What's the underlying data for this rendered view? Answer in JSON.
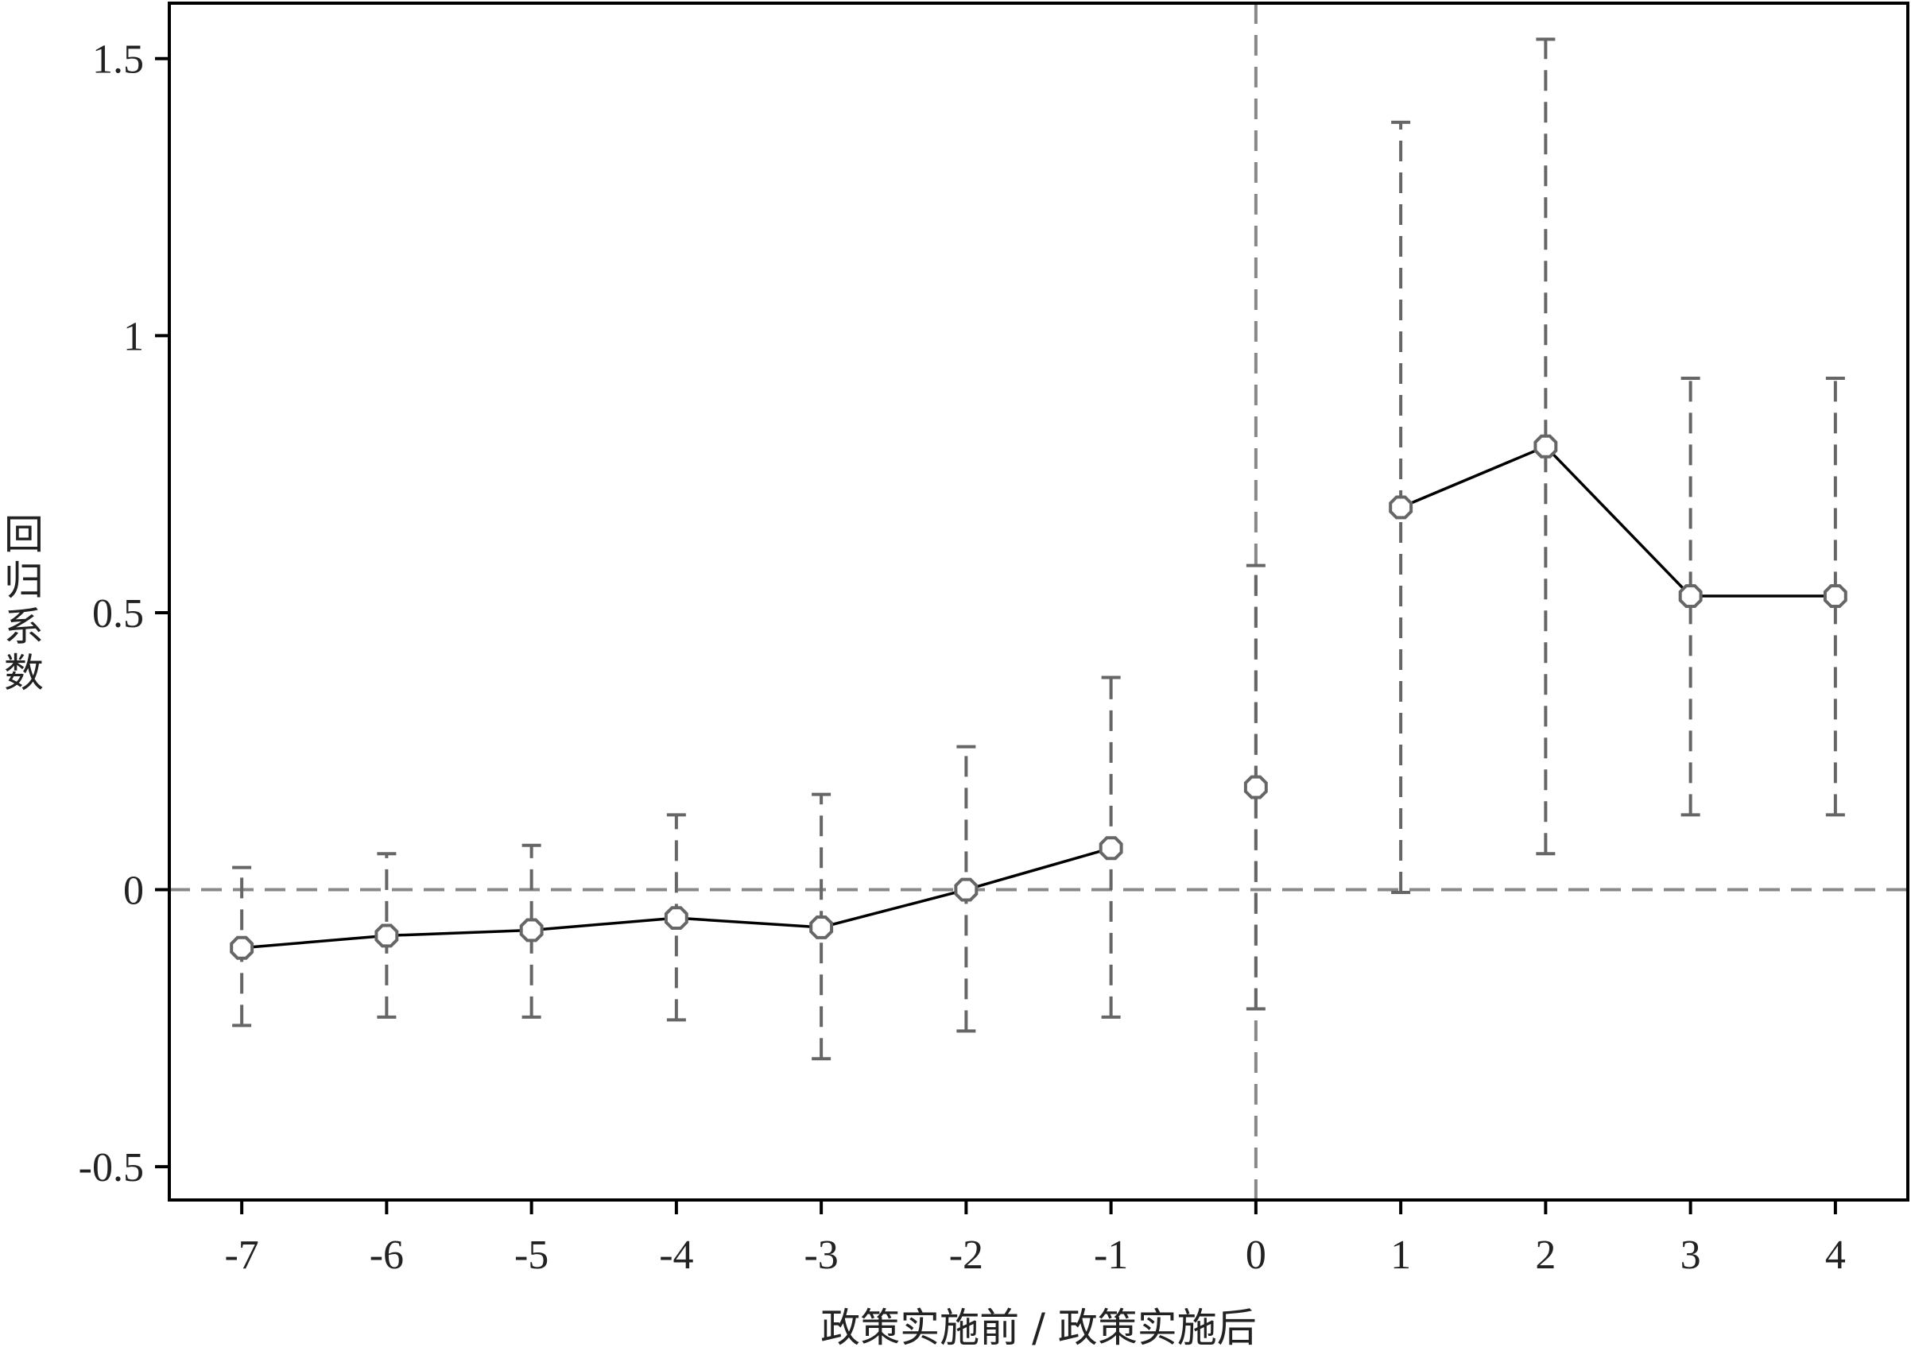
{
  "chart_data": {
    "type": "scatter",
    "xlabel": "政策实施前 / 政策实施后",
    "ylabel": "回归系数",
    "xlim": [
      -7.5,
      4.5
    ],
    "ylim": [
      -0.56,
      1.6
    ],
    "x_ticks": [
      -7,
      -6,
      -5,
      -4,
      -3,
      -2,
      -1,
      0,
      1,
      2,
      3,
      4
    ],
    "x_tick_labels": [
      "-7",
      "-6",
      "-5",
      "-4",
      "-3",
      "-2",
      "-1",
      "0",
      "1",
      "2",
      "3",
      "4"
    ],
    "y_ticks": [
      -0.5,
      0,
      0.5,
      1,
      1.5
    ],
    "y_tick_labels": [
      "-0.5",
      "0",
      "0.5",
      "1",
      "1.5"
    ],
    "reference_lines": {
      "horizontal_y": 0,
      "vertical_x": 0
    },
    "grid": false,
    "series": [
      {
        "x": [
          -7,
          -6,
          -5,
          -4,
          -3,
          -2,
          -1,
          0,
          1,
          2,
          3,
          4
        ],
        "y": [
          -0.105,
          -0.083,
          -0.073,
          -0.051,
          -0.068,
          0.0,
          0.075,
          0.185,
          0.69,
          0.8,
          0.53,
          0.53
        ],
        "ci_lower": [
          -0.245,
          -0.23,
          -0.23,
          -0.235,
          -0.305,
          -0.255,
          -0.23,
          -0.215,
          -0.005,
          0.065,
          0.135,
          0.135
        ],
        "ci_upper": [
          0.04,
          0.065,
          0.08,
          0.135,
          0.172,
          0.258,
          0.383,
          0.585,
          1.385,
          1.535,
          0.923,
          0.923
        ],
        "line_segments": [
          [
            -7,
            -1
          ],
          [
            1,
            4
          ]
        ]
      }
    ],
    "colors": {
      "line": "#000000",
      "marker": "#666666",
      "error_bar": "#666666",
      "reference_line": "#888888",
      "axis": "#000000"
    }
  }
}
